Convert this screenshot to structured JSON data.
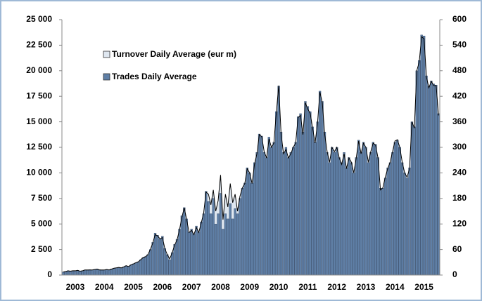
{
  "chart_data": {
    "type": "bar",
    "categories": [
      null,
      null,
      null,
      null,
      null,
      "2003",
      null,
      null,
      null,
      null,
      null,
      null,
      null,
      null,
      null,
      null,
      null,
      "2004",
      null,
      null,
      null,
      null,
      null,
      null,
      null,
      null,
      null,
      null,
      null,
      "2005",
      null,
      null,
      null,
      null,
      null,
      null,
      null,
      null,
      null,
      null,
      null,
      "2006",
      null,
      null,
      null,
      null,
      null,
      null,
      null,
      null,
      null,
      null,
      null,
      "2007",
      null,
      null,
      null,
      null,
      null,
      null,
      null,
      null,
      null,
      null,
      null,
      "2008",
      null,
      null,
      null,
      null,
      null,
      null,
      null,
      null,
      null,
      null,
      null,
      "2009",
      null,
      null,
      null,
      null,
      null,
      null,
      null,
      null,
      null,
      null,
      null,
      "2010",
      null,
      null,
      null,
      null,
      null,
      null,
      null,
      null,
      null,
      null,
      null,
      "2011",
      null,
      null,
      null,
      null,
      null,
      null,
      null,
      null,
      null,
      null,
      null,
      "2012",
      null,
      null,
      null,
      null,
      null,
      null,
      null,
      null,
      null,
      null,
      null,
      "2013",
      null,
      null,
      null,
      null,
      null,
      null,
      null,
      null,
      null,
      null,
      null,
      "2014",
      null,
      null,
      null,
      null,
      null,
      null,
      null,
      null,
      null,
      null,
      null,
      "2015",
      null,
      null,
      null,
      null,
      null,
      null
    ],
    "series": [
      {
        "name": "Turnover Daily Average (eur m)",
        "type": "area",
        "axis": "y2",
        "color": "#dfe7f0",
        "line_color": "#000000",
        "values": [
          7,
          8,
          10,
          9,
          10,
          10,
          11,
          9,
          10,
          12,
          12,
          12,
          12,
          13,
          14,
          12,
          12,
          12,
          13,
          12,
          14,
          16,
          17,
          18,
          17,
          19,
          22,
          20,
          24,
          26,
          29,
          31,
          36,
          41,
          43,
          48,
          60,
          75,
          95,
          92,
          85,
          88,
          62,
          48,
          38,
          52,
          70,
          82,
          105,
          135,
          158,
          130,
          100,
          105,
          95,
          112,
          100,
          122,
          145,
          195,
          190,
          165,
          200,
          150,
          175,
          235,
          130,
          190,
          160,
          215,
          170,
          190,
          150,
          185,
          205,
          215,
          250,
          240,
          215,
          260,
          285,
          330,
          325,
          290,
          275,
          320,
          300,
          310,
          380,
          445,
          330,
          285,
          295,
          275,
          285,
          300,
          310,
          370,
          375,
          330,
          405,
          390,
          380,
          345,
          310,
          355,
          430,
          405,
          330,
          290,
          265,
          300,
          290,
          300,
          275,
          260,
          285,
          250,
          275,
          265,
          240,
          275,
          315,
          285,
          310,
          300,
          265,
          290,
          310,
          305,
          275,
          200,
          205,
          230,
          250,
          265,
          290,
          315,
          318,
          300,
          265,
          240,
          230,
          250,
          360,
          345,
          480,
          500,
          560,
          555,
          465,
          440,
          455,
          445,
          445,
          375
        ]
      },
      {
        "name": "Trades Daily Average",
        "type": "bar",
        "axis": "y",
        "color": "#5f7fa6",
        "values": [
          300,
          350,
          400,
          380,
          420,
          400,
          450,
          380,
          420,
          500,
          480,
          520,
          500,
          550,
          600,
          520,
          480,
          500,
          550,
          520,
          600,
          650,
          700,
          750,
          700,
          800,
          900,
          850,
          1000,
          1100,
          1200,
          1300,
          1500,
          1700,
          1800,
          2000,
          2500,
          3200,
          4100,
          3900,
          3500,
          3800,
          2600,
          2000,
          1500,
          2200,
          3000,
          3500,
          4500,
          5800,
          6600,
          5500,
          4200,
          4500,
          4000,
          4800,
          4200,
          5200,
          6000,
          8200,
          7200,
          6000,
          7500,
          5000,
          6000,
          8000,
          4500,
          6000,
          5500,
          7000,
          5500,
          6500,
          6000,
          7500,
          8500,
          9000,
          10500,
          10000,
          9000,
          11000,
          12000,
          13800,
          13600,
          12000,
          11500,
          13500,
          12500,
          13000,
          16000,
          18500,
          14000,
          12000,
          12500,
          11500,
          12000,
          12500,
          13000,
          15500,
          15800,
          14000,
          17000,
          16500,
          16000,
          14500,
          13000,
          15000,
          18000,
          17000,
          14000,
          12000,
          11000,
          12500,
          12000,
          12500,
          11500,
          11000,
          12000,
          10500,
          11500,
          11000,
          10000,
          11500,
          13200,
          12000,
          13000,
          12500,
          11000,
          12000,
          13000,
          12800,
          11500,
          8500,
          8500,
          9500,
          10500,
          11000,
          12000,
          13000,
          13200,
          12500,
          11000,
          10000,
          9500,
          10500,
          15000,
          14500,
          20000,
          21000,
          23500,
          23400,
          19500,
          18500,
          19000,
          18700,
          18600,
          15800
        ]
      }
    ],
    "ylim": [
      0,
      25000
    ],
    "yticks": [
      0,
      {
        "value": 2500,
        "label": "2 500"
      },
      {
        "value": 5000,
        "label": "5 000"
      },
      {
        "value": 7500,
        "label": "7 500"
      },
      {
        "value": 10000,
        "label": "10 000"
      },
      {
        "value": 12500,
        "label": "12 500"
      },
      {
        "value": 15000,
        "label": "15 000"
      },
      {
        "value": 17500,
        "label": "17 500"
      },
      {
        "value": 20000,
        "label": "20 000"
      },
      {
        "value": 22500,
        "label": "22 500"
      },
      {
        "value": 25000,
        "label": "25 000"
      }
    ],
    "y2lim": [
      0,
      600
    ],
    "y2ticks": [
      0,
      60,
      120,
      180,
      240,
      300,
      360,
      420,
      480,
      540,
      600
    ],
    "grid": false,
    "legend": "top-left"
  }
}
